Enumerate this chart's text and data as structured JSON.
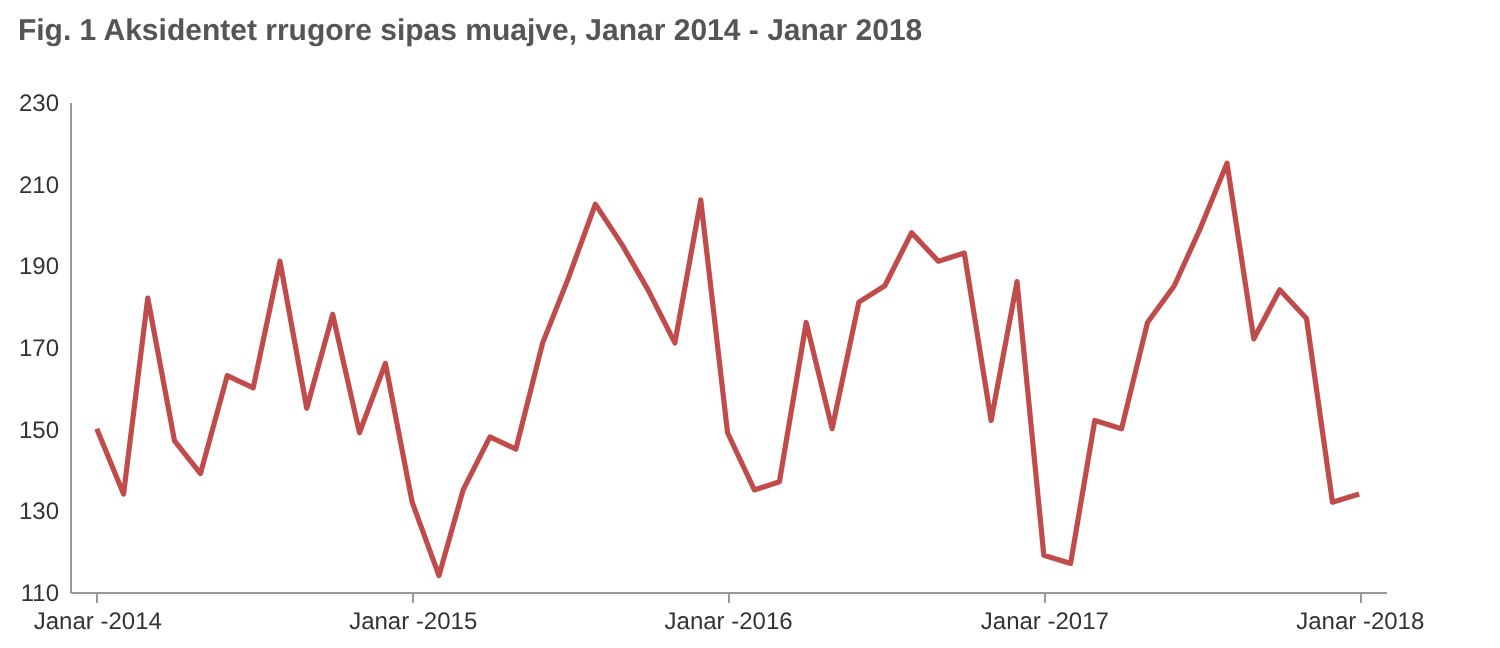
{
  "chart_data": {
    "type": "line",
    "title": "Fig. 1 Aksidentet rrugore sipas muajve, Janar 2014 - Janar 2018",
    "x": [
      "2014-01",
      "2014-02",
      "2014-03",
      "2014-04",
      "2014-05",
      "2014-06",
      "2014-07",
      "2014-08",
      "2014-09",
      "2014-10",
      "2014-11",
      "2014-12",
      "2015-01",
      "2015-02",
      "2015-03",
      "2015-04",
      "2015-05",
      "2015-06",
      "2015-07",
      "2015-08",
      "2015-09",
      "2015-10",
      "2015-11",
      "2015-12",
      "2016-01",
      "2016-02",
      "2016-03",
      "2016-04",
      "2016-05",
      "2016-06",
      "2016-07",
      "2016-08",
      "2016-09",
      "2016-10",
      "2016-11",
      "2016-12",
      "2017-01",
      "2017-02",
      "2017-03",
      "2017-04",
      "2017-05",
      "2017-06",
      "2017-07",
      "2017-08",
      "2017-09",
      "2017-10",
      "2017-11",
      "2017-12",
      "2018-01"
    ],
    "series": [
      {
        "color": "#bf4b4b",
        "values": [
          150,
          134,
          182,
          147,
          139,
          163,
          160,
          191,
          155,
          178,
          149,
          166,
          132,
          114,
          135,
          148,
          145,
          171,
          187,
          205,
          195,
          184,
          171,
          206,
          149,
          135,
          137,
          176,
          150,
          181,
          185,
          198,
          191,
          193,
          152,
          186,
          119,
          117,
          152,
          150,
          176,
          185,
          199,
          215,
          172,
          184,
          177,
          132,
          134
        ]
      }
    ],
    "xlim": [
      "2013-12",
      "2018-02"
    ],
    "xticks": [
      {
        "value": "2014-01",
        "label": "Janar -2014"
      },
      {
        "value": "2015-01",
        "label": "Janar -2015"
      },
      {
        "value": "2016-01",
        "label": "Janar -2016"
      },
      {
        "value": "2017-01",
        "label": "Janar -2017"
      },
      {
        "value": "2018-01",
        "label": "Janar -2018"
      }
    ],
    "ylim": [
      110,
      230
    ],
    "yticks": [
      110,
      130,
      150,
      170,
      190,
      210,
      230
    ],
    "grid": false,
    "marker": "none",
    "line_style": "solid"
  }
}
